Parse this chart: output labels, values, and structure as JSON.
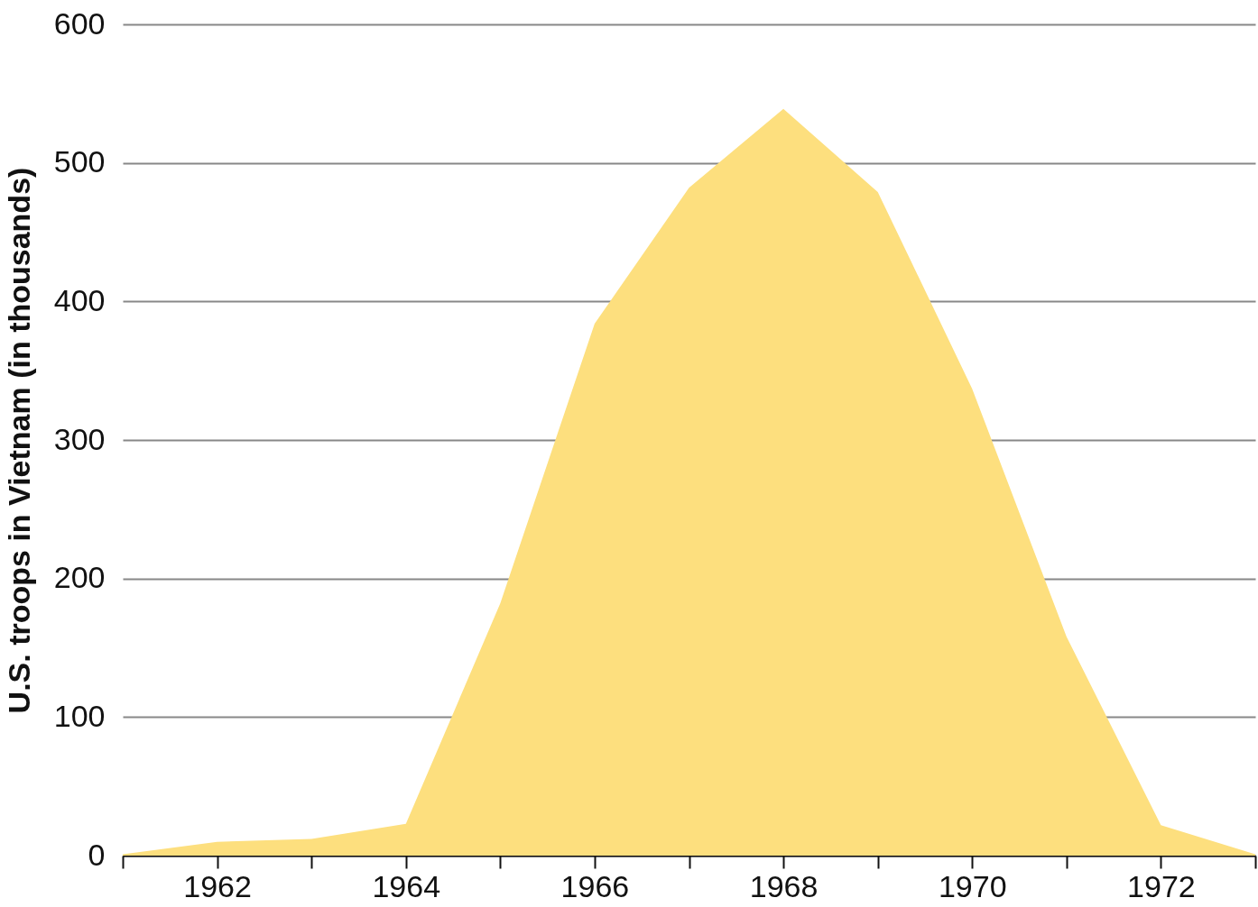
{
  "chart_data": {
    "type": "area",
    "ylabel": "U.S. troops in Vietnam (in thousands)",
    "x": [
      1961,
      1962,
      1963,
      1964,
      1965,
      1966,
      1967,
      1968,
      1969,
      1970,
      1971,
      1972,
      1973
    ],
    "series": [
      {
        "color": "#fddf7e",
        "values": [
          1,
          10,
          12,
          23,
          182,
          384,
          482,
          539,
          479,
          337,
          158,
          22,
          1
        ]
      }
    ],
    "xlim": [
      1961,
      1973
    ],
    "xticks": [
      {
        "value": 1961,
        "label": null
      },
      1962,
      {
        "value": 1963,
        "label": null
      },
      1964,
      {
        "value": 1965,
        "label": null
      },
      1966,
      {
        "value": 1967,
        "label": null
      },
      1968,
      {
        "value": 1969,
        "label": null
      },
      1970,
      {
        "value": 1971,
        "label": null
      },
      1972,
      {
        "value": 1973,
        "label": null
      }
    ],
    "ylim": [
      0,
      600
    ],
    "yticks": [
      0,
      100,
      200,
      300,
      400,
      500,
      600
    ],
    "grid": "y"
  }
}
